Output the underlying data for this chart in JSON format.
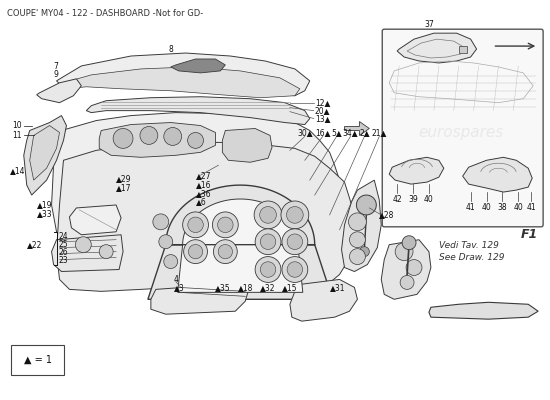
{
  "title": "COUPE' MY04 - 122 - DASHBOARD -Not for GD-",
  "title_fontsize": 6.0,
  "background_color": "#ffffff",
  "fig_width": 5.5,
  "fig_height": 4.0,
  "dpi": 100,
  "legend_symbol": "▲ = 1",
  "inset_label": "F1",
  "see_draw_text": "Vedi Tav. 129\nSee Draw. 129",
  "watermark_text": "eurospares",
  "line_color": "#3a3a3a",
  "fill_color": "#f0f0f0",
  "fill_color2": "#e0e0e0",
  "fill_color3": "#d0d0d0"
}
